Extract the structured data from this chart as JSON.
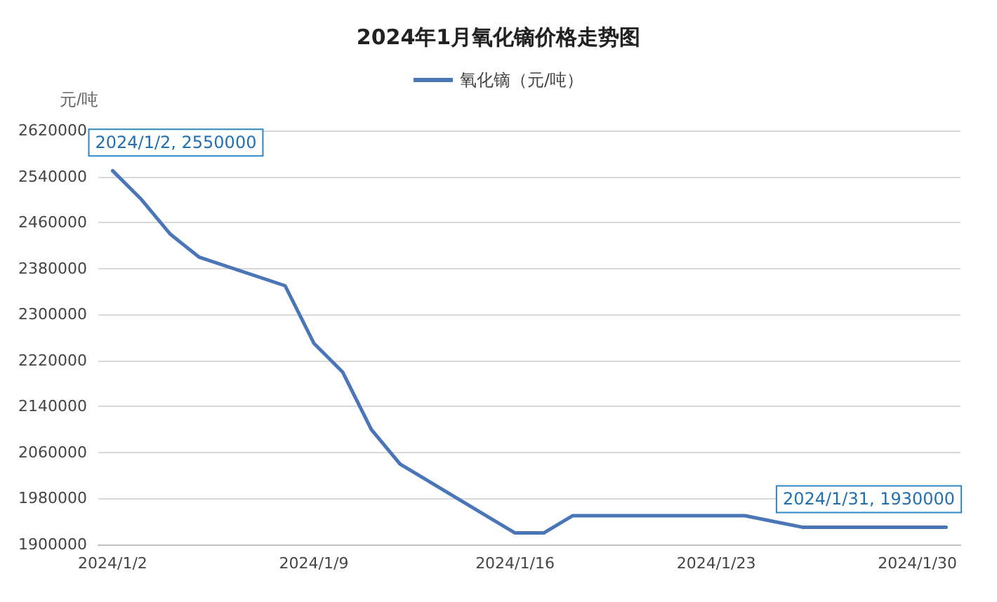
{
  "chart_data": {
    "type": "line",
    "title": "2024年1月氧化镝价格走势图",
    "ylabel": "元/吨",
    "x": [
      "2024-01-02",
      "2024-01-03",
      "2024-01-04",
      "2024-01-05",
      "2024-01-08",
      "2024-01-09",
      "2024-01-10",
      "2024-01-11",
      "2024-01-12",
      "2024-01-15",
      "2024-01-16",
      "2024-01-17",
      "2024-01-18",
      "2024-01-19",
      "2024-01-22",
      "2024-01-23",
      "2024-01-24",
      "2024-01-25",
      "2024-01-26",
      "2024-01-29",
      "2024-01-30",
      "2024-01-31"
    ],
    "series": [
      {
        "name": "氧化镝（元/吨）",
        "color": "#4a76b8",
        "values": [
          2550000,
          2500000,
          2440000,
          2400000,
          2350000,
          2250000,
          2200000,
          2100000,
          2040000,
          1950000,
          1920000,
          1920000,
          1950000,
          1950000,
          1950000,
          1950000,
          1950000,
          1940000,
          1930000,
          1930000,
          1930000,
          1930000
        ]
      }
    ],
    "xlim": [
      "2024-01-01T12:00",
      "2024-01-31T12:00"
    ],
    "xticks": [
      {
        "value": "2024-01-02",
        "label": "2024/1/2"
      },
      {
        "value": "2024-01-09",
        "label": "2024/1/9"
      },
      {
        "value": "2024-01-16",
        "label": "2024/1/16"
      },
      {
        "value": "2024-01-23",
        "label": "2024/1/23"
      },
      {
        "value": "2024-01-30",
        "label": "2024/1/30"
      }
    ],
    "ylim": [
      1900000,
      2620000
    ],
    "yticks": [
      1900000,
      1980000,
      2060000,
      2140000,
      2220000,
      2300000,
      2380000,
      2460000,
      2540000,
      2620000
    ],
    "annotations": [
      {
        "text": "2024/1/2, 2550000",
        "x": "2024-01-02",
        "y": 2550000
      },
      {
        "text": "2024/1/31, 1930000",
        "x": "2024-01-31",
        "y": 1930000
      }
    ],
    "grid": "y",
    "legend": "top",
    "marker": "none",
    "line_style": "solid"
  }
}
